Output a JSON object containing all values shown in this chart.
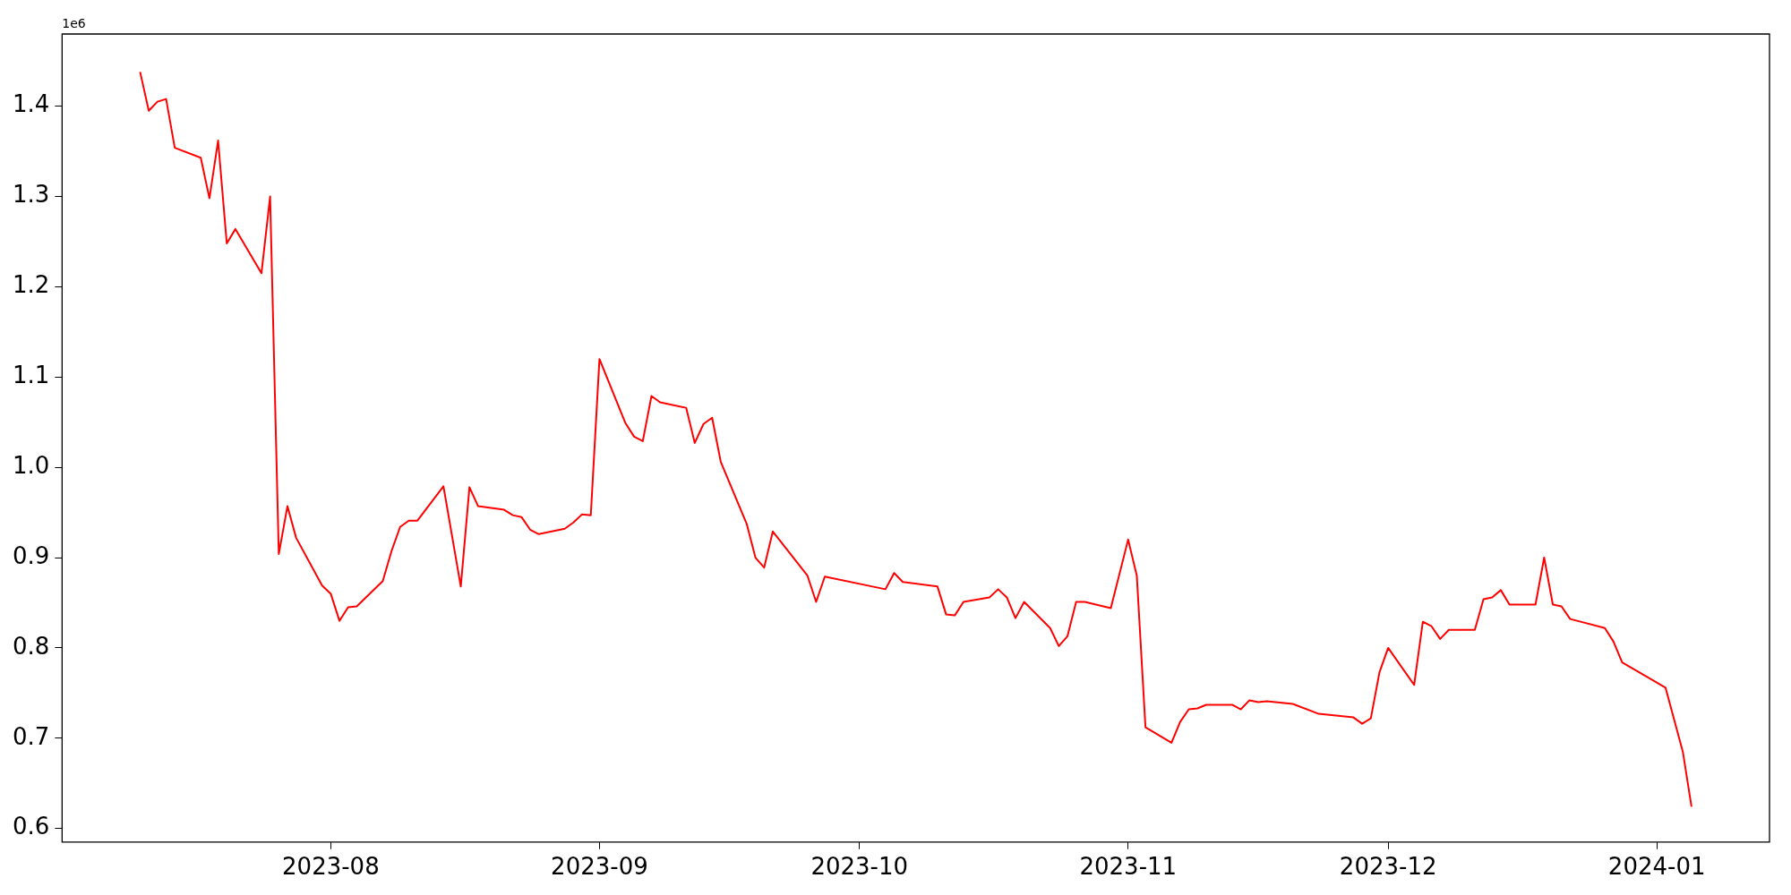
{
  "chart_data": {
    "type": "line",
    "annotations": [
      "1e6"
    ],
    "x": [
      "2023-07-10",
      "2023-07-11",
      "2023-07-12",
      "2023-07-13",
      "2023-07-14",
      "2023-07-17",
      "2023-07-18",
      "2023-07-19",
      "2023-07-20",
      "2023-07-21",
      "2023-07-24",
      "2023-07-25",
      "2023-07-26",
      "2023-07-27",
      "2023-07-28",
      "2023-07-31",
      "2023-08-01",
      "2023-08-02",
      "2023-08-03",
      "2023-08-04",
      "2023-08-07",
      "2023-08-08",
      "2023-08-09",
      "2023-08-10",
      "2023-08-11",
      "2023-08-14",
      "2023-08-16",
      "2023-08-17",
      "2023-08-18",
      "2023-08-21",
      "2023-08-22",
      "2023-08-23",
      "2023-08-24",
      "2023-08-25",
      "2023-08-28",
      "2023-08-29",
      "2023-08-30",
      "2023-08-31",
      "2023-09-01",
      "2023-09-04",
      "2023-09-05",
      "2023-09-06",
      "2023-09-07",
      "2023-09-08",
      "2023-09-11",
      "2023-09-12",
      "2023-09-13",
      "2023-09-14",
      "2023-09-15",
      "2023-09-18",
      "2023-09-19",
      "2023-09-20",
      "2023-09-21",
      "2023-09-25",
      "2023-09-26",
      "2023-09-27",
      "2023-10-04",
      "2023-10-05",
      "2023-10-06",
      "2023-10-10",
      "2023-10-11",
      "2023-10-12",
      "2023-10-13",
      "2023-10-16",
      "2023-10-17",
      "2023-10-18",
      "2023-10-19",
      "2023-10-20",
      "2023-10-23",
      "2023-10-24",
      "2023-10-25",
      "2023-10-26",
      "2023-10-27",
      "2023-10-30",
      "2023-11-01",
      "2023-11-02",
      "2023-11-03",
      "2023-11-06",
      "2023-11-07",
      "2023-11-08",
      "2023-11-09",
      "2023-11-10",
      "2023-11-13",
      "2023-11-14",
      "2023-11-15",
      "2023-11-16",
      "2023-11-17",
      "2023-11-20",
      "2023-11-23",
      "2023-11-27",
      "2023-11-28",
      "2023-11-29",
      "2023-11-30",
      "2023-12-01",
      "2023-12-04",
      "2023-12-05",
      "2023-12-06",
      "2023-12-07",
      "2023-12-08",
      "2023-12-11",
      "2023-12-12",
      "2023-12-13",
      "2023-12-14",
      "2023-12-15",
      "2023-12-18",
      "2023-12-19",
      "2023-12-20",
      "2023-12-21",
      "2023-12-22",
      "2023-12-26",
      "2023-12-27",
      "2023-12-28",
      "2024-01-02",
      "2024-01-04",
      "2024-01-05"
    ],
    "series": [
      {
        "color": "#ff0000",
        "values": [
          1.438,
          1.395,
          1.405,
          1.408,
          1.354,
          1.343,
          1.298,
          1.362,
          1.248,
          1.264,
          1.215,
          1.3,
          0.904,
          0.957,
          0.922,
          0.869,
          0.86,
          0.83,
          0.845,
          0.846,
          0.874,
          0.907,
          0.934,
          0.941,
          0.941,
          0.979,
          0.868,
          0.978,
          0.957,
          0.953,
          0.947,
          0.945,
          0.931,
          0.926,
          0.932,
          0.939,
          0.948,
          0.947,
          1.12,
          1.049,
          1.034,
          1.029,
          1.079,
          1.072,
          1.066,
          1.027,
          1.048,
          1.055,
          1.006,
          0.937,
          0.9,
          0.889,
          0.929,
          0.88,
          0.851,
          0.879,
          0.865,
          0.883,
          0.873,
          0.868,
          0.837,
          0.836,
          0.851,
          0.856,
          0.865,
          0.856,
          0.833,
          0.851,
          0.822,
          0.802,
          0.813,
          0.851,
          0.851,
          0.844,
          0.92,
          0.88,
          0.712,
          0.695,
          0.718,
          0.732,
          0.733,
          0.737,
          0.737,
          0.732,
          0.742,
          0.74,
          0.741,
          0.738,
          0.727,
          0.723,
          0.716,
          0.722,
          0.773,
          0.8,
          0.759,
          0.829,
          0.824,
          0.81,
          0.82,
          0.82,
          0.854,
          0.856,
          0.864,
          0.848,
          0.848,
          0.9,
          0.848,
          0.846,
          0.832,
          0.822,
          0.807,
          0.784,
          0.756,
          0.685,
          0.624
        ]
      }
    ],
    "xlim": [
      "2023-07-01",
      "2024-01-14"
    ],
    "xticks": [
      "2023-08",
      "2023-09",
      "2023-10",
      "2023-11",
      "2023-12",
      "2024-01"
    ],
    "ylim": [
      0.585,
      1.48
    ],
    "yticks": [
      {
        "value": 0.6,
        "label": "0.6"
      },
      {
        "value": 0.7,
        "label": "0.7"
      },
      {
        "value": 0.8,
        "label": "0.8"
      },
      {
        "value": 0.9,
        "label": "0.9"
      },
      {
        "value": 1.0,
        "label": "1.0"
      },
      {
        "value": 1.1,
        "label": "1.1"
      },
      {
        "value": 1.2,
        "label": "1.2"
      },
      {
        "value": 1.3,
        "label": "1.3"
      },
      {
        "value": 1.4,
        "label": "1.4"
      }
    ],
    "grid": false,
    "legend": false,
    "line_style": "solid",
    "marker": "none"
  }
}
